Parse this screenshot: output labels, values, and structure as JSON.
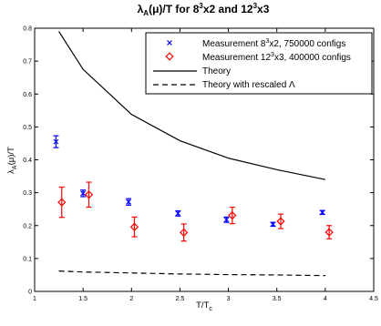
{
  "chart_data": {
    "type": "scatter",
    "title": {
      "sym": "λ",
      "sub": "A",
      "arg": "(μ)/T for 8",
      "sup1": "3",
      "mid": "x2 and 12",
      "sup2": "3",
      "end": "x3"
    },
    "xlabel": {
      "main": "T/T",
      "sub": "c"
    },
    "ylabel": {
      "sym": "λ",
      "sub": "A",
      "rest": "(μ)/T"
    },
    "xlim": [
      1,
      4.5
    ],
    "ylim": [
      0,
      0.8
    ],
    "x_ticks": [
      "1",
      "1.5",
      "2",
      "2.5",
      "3",
      "3.5",
      "4",
      "4.5"
    ],
    "y_ticks": [
      "0",
      "0.1",
      "0.2",
      "0.3",
      "0.4",
      "0.5",
      "0.6",
      "0.7",
      "0.8"
    ],
    "legend_position": "top-right",
    "series": [
      {
        "name": {
          "pre": "Measurement 8",
          "sup": "3",
          "post": "x2, 750000 configs"
        },
        "kind": "points",
        "marker": "x",
        "color": "#0000ff",
        "x": [
          1.22,
          1.5,
          1.97,
          2.48,
          2.98,
          3.46,
          3.97
        ],
        "y": [
          0.455,
          0.298,
          0.272,
          0.237,
          0.218,
          0.204,
          0.24
        ],
        "err": [
          0.018,
          0.01,
          0.01,
          0.008,
          0.008,
          0.006,
          0.006
        ]
      },
      {
        "name": {
          "pre": "Measurement 12",
          "sup": "3",
          "post": "x3, 400000 configs"
        },
        "kind": "points",
        "marker": "diamond",
        "color": "#ff0000",
        "x": [
          1.28,
          1.56,
          2.03,
          2.54,
          3.04,
          3.54,
          4.04
        ],
        "y": [
          0.271,
          0.294,
          0.196,
          0.179,
          0.231,
          0.213,
          0.18
        ],
        "err": [
          0.046,
          0.038,
          0.03,
          0.026,
          0.025,
          0.022,
          0.02
        ]
      },
      {
        "name": {
          "pre": "Theory",
          "sup": "",
          "post": ""
        },
        "kind": "line",
        "dash": "solid",
        "color": "#000000",
        "x": [
          1.25,
          1.5,
          2.0,
          2.5,
          3.0,
          3.5,
          4.0
        ],
        "y": [
          0.79,
          0.675,
          0.538,
          0.458,
          0.405,
          0.37,
          0.34
        ]
      },
      {
        "name": {
          "pre": "Theory with rescaled Λ",
          "sup": "",
          "post": ""
        },
        "kind": "line",
        "dash": "dashed",
        "color": "#000000",
        "x": [
          1.25,
          1.5,
          2.0,
          2.5,
          3.0,
          3.5,
          4.0
        ],
        "y": [
          0.062,
          0.059,
          0.056,
          0.053,
          0.051,
          0.05,
          0.048
        ]
      }
    ]
  }
}
